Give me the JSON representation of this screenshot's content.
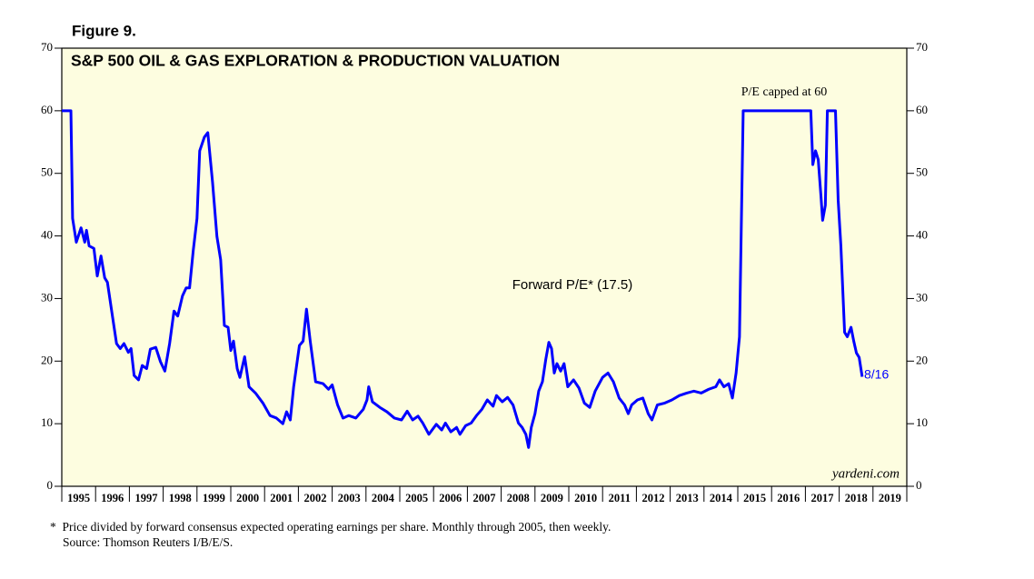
{
  "chart_data": {
    "type": "line",
    "figure_label": "Figure 9.",
    "title": "S&P 500 OIL & GAS EXPLORATION & PRODUCTION VALUATION",
    "annotations": [
      "P/E capped at 60",
      "8/16",
      "yardeni.com"
    ],
    "footnotes": [
      "*  Price divided by forward consensus expected operating earnings per share. Monthly through 2005, then weekly.",
      "Source: Thomson Reuters I/B/E/S."
    ],
    "xlim": [
      1995,
      2020
    ],
    "xticks": [
      {
        "value": 1995.5,
        "label": "1995"
      },
      {
        "value": 1996.5,
        "label": "1996"
      },
      {
        "value": 1997.5,
        "label": "1997"
      },
      {
        "value": 1998.5,
        "label": "1998"
      },
      {
        "value": 1999.5,
        "label": "1999"
      },
      {
        "value": 2000.5,
        "label": "2000"
      },
      {
        "value": 2001.5,
        "label": "2001"
      },
      {
        "value": 2002.5,
        "label": "2002"
      },
      {
        "value": 2003.5,
        "label": "2003"
      },
      {
        "value": 2004.5,
        "label": "2004"
      },
      {
        "value": 2005.5,
        "label": "2005"
      },
      {
        "value": 2006.5,
        "label": "2006"
      },
      {
        "value": 2007.5,
        "label": "2007"
      },
      {
        "value": 2008.5,
        "label": "2008"
      },
      {
        "value": 2009.5,
        "label": "2009"
      },
      {
        "value": 2010.5,
        "label": "2010"
      },
      {
        "value": 2011.5,
        "label": "2011"
      },
      {
        "value": 2012.5,
        "label": "2012"
      },
      {
        "value": 2013.5,
        "label": "2013"
      },
      {
        "value": 2014.5,
        "label": "2014"
      },
      {
        "value": 2015.5,
        "label": "2015"
      },
      {
        "value": 2016.5,
        "label": "2016"
      },
      {
        "value": 2017.5,
        "label": "2017"
      },
      {
        "value": 2018.5,
        "label": "2018"
      },
      {
        "value": 2019.5,
        "label": "2019"
      }
    ],
    "ylim": [
      0,
      70
    ],
    "yticks": [
      0,
      10,
      20,
      30,
      40,
      50,
      60,
      70
    ],
    "y2lim": [
      0,
      70
    ],
    "y2ticks": [
      0,
      10,
      20,
      30,
      40,
      50,
      60,
      70
    ],
    "background": "#fdfde0",
    "series": [
      {
        "name": "Forward P/E* (17.5)",
        "color": "#0000ff",
        "x": [
          1995.0,
          1995.27,
          1995.32,
          1995.43,
          1995.57,
          1995.68,
          1995.73,
          1995.81,
          1995.95,
          1996.05,
          1996.16,
          1996.27,
          1996.35,
          1996.49,
          1996.62,
          1996.73,
          1996.84,
          1996.97,
          1997.05,
          1997.14,
          1997.27,
          1997.38,
          1997.51,
          1997.62,
          1997.78,
          1997.92,
          1998.05,
          1998.19,
          1998.32,
          1998.43,
          1998.57,
          1998.68,
          1998.78,
          1998.89,
          1999.0,
          1999.08,
          1999.22,
          1999.32,
          1999.46,
          1999.59,
          1999.7,
          1999.81,
          1999.92,
          2000.0,
          2000.08,
          2000.19,
          2000.27,
          2000.41,
          2000.54,
          2000.73,
          2000.95,
          2001.16,
          2001.35,
          2001.54,
          2001.65,
          2001.76,
          2001.86,
          2002.03,
          2002.14,
          2002.24,
          2002.35,
          2002.51,
          2002.73,
          2002.89,
          2003.0,
          2003.16,
          2003.32,
          2003.49,
          2003.7,
          2003.92,
          2004.03,
          2004.08,
          2004.19,
          2004.41,
          2004.62,
          2004.84,
          2005.05,
          2005.22,
          2005.38,
          2005.54,
          2005.68,
          2005.86,
          2006.08,
          2006.24,
          2006.35,
          2006.51,
          2006.68,
          2006.78,
          2006.95,
          2007.11,
          2007.27,
          2007.43,
          2007.59,
          2007.76,
          2007.86,
          2008.03,
          2008.19,
          2008.35,
          2008.51,
          2008.62,
          2008.73,
          2008.81,
          2008.89,
          2009.0,
          2009.11,
          2009.22,
          2009.32,
          2009.41,
          2009.49,
          2009.57,
          2009.65,
          2009.76,
          2009.86,
          2009.97,
          2010.14,
          2010.3,
          2010.46,
          2010.62,
          2010.78,
          2011.0,
          2011.16,
          2011.32,
          2011.49,
          2011.65,
          2011.76,
          2011.86,
          2012.03,
          2012.19,
          2012.35,
          2012.46,
          2012.62,
          2012.84,
          2013.05,
          2013.27,
          2013.49,
          2013.7,
          2013.92,
          2014.14,
          2014.35,
          2014.46,
          2014.59,
          2014.73,
          2014.84,
          2014.95,
          2015.05,
          2015.16,
          2016.08,
          2017.16,
          2017.22,
          2017.3,
          2017.38,
          2017.46,
          2017.51,
          2017.59,
          2017.65,
          2017.89,
          2017.97,
          2018.05,
          2018.16,
          2018.24,
          2018.35,
          2018.43,
          2018.51,
          2018.59,
          2018.68
        ],
        "values": [
          60,
          60,
          42.8,
          39,
          41.3,
          39,
          40.9,
          38.4,
          38,
          33.6,
          36.8,
          33.3,
          32.6,
          27.5,
          22.8,
          22,
          22.8,
          21.4,
          22,
          17.7,
          17,
          19.3,
          18.8,
          21.9,
          22.2,
          19.9,
          18.4,
          22.8,
          28,
          27.2,
          30.4,
          31.7,
          31.7,
          37.7,
          42.8,
          53.6,
          55.8,
          56.5,
          48.6,
          39.9,
          36.2,
          25.7,
          25.4,
          21.7,
          23.2,
          18.8,
          17.4,
          20.7,
          15.9,
          14.9,
          13.3,
          11.3,
          10.9,
          10,
          11.9,
          10.6,
          15.9,
          22.5,
          23.2,
          28.3,
          23.2,
          16.7,
          16.4,
          15.5,
          16.2,
          13,
          10.9,
          11.3,
          10.9,
          12.3,
          13.8,
          15.9,
          13.5,
          12.6,
          11.9,
          10.9,
          10.6,
          12,
          10.6,
          11.2,
          10.1,
          8.3,
          9.9,
          9,
          10.1,
          8.7,
          9.4,
          8.3,
          9.7,
          10.1,
          11.3,
          12.3,
          13.8,
          12.8,
          14.5,
          13.5,
          14.2,
          13,
          10.1,
          9.4,
          8.3,
          6.2,
          9.4,
          11.6,
          15.2,
          16.7,
          20.3,
          23,
          22,
          18.1,
          19.6,
          18.4,
          19.6,
          15.9,
          17,
          15.7,
          13.3,
          12.6,
          15.2,
          17.4,
          18.1,
          16.7,
          14.1,
          13,
          11.6,
          13,
          13.8,
          14.1,
          11.6,
          10.6,
          13,
          13.3,
          13.8,
          14.5,
          14.9,
          15.2,
          14.9,
          15.5,
          15.9,
          17,
          15.9,
          16.4,
          14.1,
          18.1,
          23.9,
          60,
          60,
          60,
          51.4,
          53.6,
          52.2,
          46.4,
          42.5,
          44.9,
          60,
          60,
          45.7,
          38.4,
          24.6,
          23.9,
          25.4,
          23.2,
          21.3,
          20.6,
          17.5
        ]
      }
    ]
  }
}
